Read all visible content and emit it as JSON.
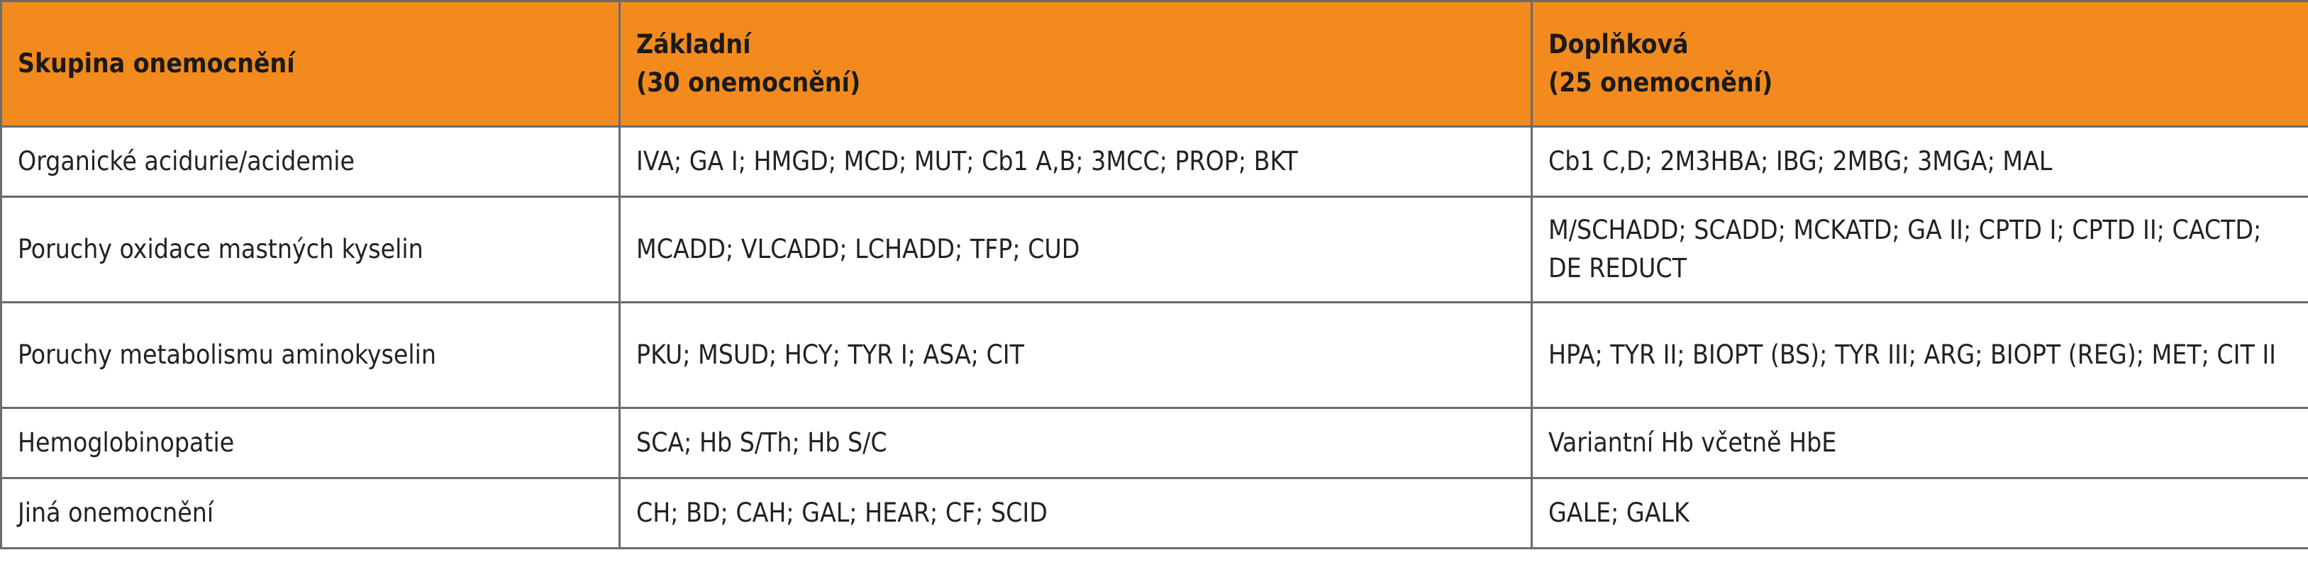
{
  "table": {
    "header": [
      [
        "Skupina onemocnění"
      ],
      [
        "Základní",
        "(30 onemocnění)"
      ],
      [
        "Doplňková",
        "(25 onemocnění)"
      ]
    ],
    "rows": [
      [
        "Organické acidurie/acidemie",
        "IVA; GA I; HMGD; MCD; MUT; Cb1 A,B; 3MCC; PROP; BKT",
        "Cb1 C,D; 2M3HBA; IBG; 2MBG; 3MGA; MAL"
      ],
      [
        "Poruchy oxidace mastných kyselin",
        "MCADD; VLCADD; LCHADD; TFP; CUD",
        "M/SCHADD; SCADD; MCKATD; GA II; CPTD I; CPTD II; CACTD; DE REDUCT"
      ],
      [
        "Poruchy metabolismu aminokyselin",
        "PKU; MSUD; HCY; TYR I; ASA; CIT",
        "HPA; TYR II; BIOPT (BS); TYR III; ARG; BIOPT (REG); MET; CIT II"
      ],
      [
        "Hemoglobinopatie",
        "SCA; Hb S/Th; Hb S/C",
        "Variantní Hb včetně HbE"
      ],
      [
        "Jiná onemocnění",
        "CH; BD; CAH; GAL; HEAR; CF; SCID",
        "GALE; GALK"
      ]
    ]
  }
}
